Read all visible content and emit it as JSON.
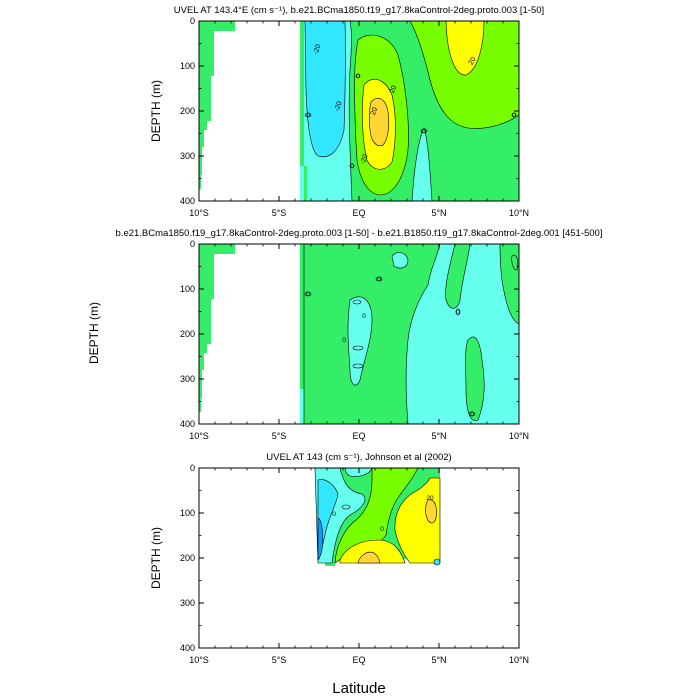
{
  "figure": {
    "xlabel": "Latitude"
  },
  "colors": {
    "neg_dark": "#00a0ff",
    "neg_mid": "#33e6ff",
    "neg_light": "#66ffee",
    "zero_band": "#33ee66",
    "pos_light": "#77ff00",
    "pos_mid": "#ffff00",
    "pos_high": "#ffd633",
    "land_bar": "#33ee66",
    "frame": "#000000"
  },
  "chart_data": [
    {
      "type": "heatmap",
      "title": "UVEL AT 143.4°E (cm s⁻¹), b.e21.BCma1850.f19_g17.8kaControl-2deg.proto.003 [1-50]",
      "ylabel": "DEPTH (m)",
      "xlim": [
        -10,
        10
      ],
      "ylim": [
        400,
        0
      ],
      "x_ticks": [
        "10°S",
        "5°S",
        "EQ",
        "5°N",
        "10°N"
      ],
      "y_ticks": [
        "0",
        "100",
        "200",
        "300",
        "400"
      ],
      "contour_labels": [
        "-20",
        "-20",
        "-20",
        "20",
        "20",
        "20",
        "0",
        "0",
        "0",
        "0",
        "0"
      ],
      "features": [
        {
          "kind": "westward",
          "lat": -1.3,
          "depth": 100,
          "value": -20
        },
        {
          "kind": "eastward_core",
          "lat": 1.1,
          "depth": 200,
          "value": 40
        },
        {
          "kind": "eastward_core",
          "lat": 5.6,
          "depth": 40,
          "value": 30
        }
      ]
    },
    {
      "type": "heatmap",
      "title": "b.e21.BCma1850.f19_g17.8kaControl-2deg.proto.003 [1-50] - b.e21.B1850.f19_g17.8kaControl-2deg.001 [451-500]",
      "ylabel": "DEPTH (m)",
      "xlim": [
        -10,
        10
      ],
      "ylim": [
        400,
        0
      ],
      "x_ticks": [
        "10°S",
        "5°S",
        "EQ",
        "5°N",
        "10°N"
      ],
      "y_ticks": [
        "0",
        "100",
        "200",
        "300",
        "400"
      ],
      "contour_labels": [
        "0",
        "0",
        "0",
        "0",
        "0",
        "0"
      ],
      "features": []
    },
    {
      "type": "heatmap",
      "title": "UVEL AT 143 (cm s⁻¹), Johnson et al (2002)",
      "ylabel": "DEPTH (m)",
      "xlim": [
        -10,
        10
      ],
      "ylim": [
        400,
        0
      ],
      "x_ticks": [
        "10°S",
        "5°S",
        "EQ",
        "5°N",
        "10°N"
      ],
      "y_ticks": [
        "0",
        "100",
        "200",
        "300",
        "400"
      ],
      "contour_labels": [
        "0",
        "0",
        "20"
      ],
      "features": []
    }
  ]
}
